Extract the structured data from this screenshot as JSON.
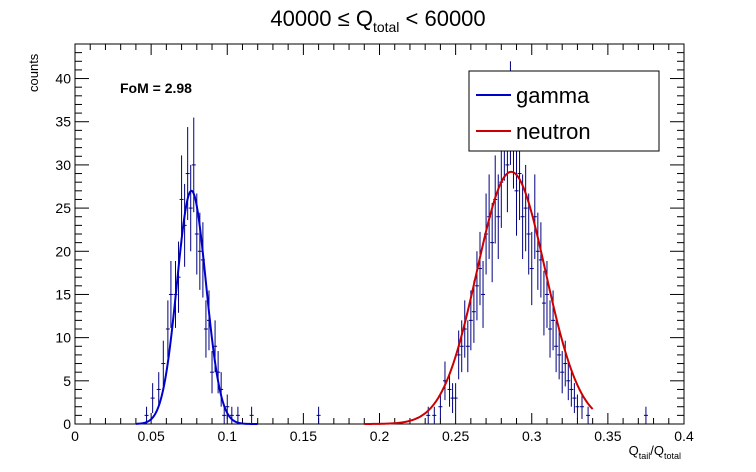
{
  "chart_data": {
    "type": "line",
    "title": {
      "prefix": "40000 ≤ Q",
      "sub": "total",
      "suffix": " < 60000"
    },
    "xlabel": {
      "main1": "Q",
      "sub1": "tail",
      "sep": "/Q",
      "sub2": "total"
    },
    "ylabel": "counts",
    "xlim": [
      0,
      0.4
    ],
    "ylim": [
      0,
      44
    ],
    "xticks": [
      "0",
      "0.05",
      "0.1",
      "0.15",
      "0.2",
      "0.25",
      "0.3",
      "0.35",
      "0.4"
    ],
    "yticks": [
      "0",
      "5",
      "10",
      "15",
      "20",
      "25",
      "30",
      "35",
      "40"
    ],
    "annotation": "FoM = 2.98",
    "legend_position": "top-right",
    "series": [
      {
        "name": "gamma",
        "color": "#0000cc",
        "fit": {
          "amplitude": 27,
          "mean": 0.0765,
          "sigma": 0.0095,
          "range": [
            0.04,
            0.12
          ]
        },
        "points": [
          [
            0.047,
            1
          ],
          [
            0.051,
            3
          ],
          [
            0.055,
            4
          ],
          [
            0.058,
            7
          ],
          [
            0.061,
            11
          ],
          [
            0.063,
            15
          ],
          [
            0.066,
            15
          ],
          [
            0.068,
            17
          ],
          [
            0.07,
            26
          ],
          [
            0.072,
            23
          ],
          [
            0.074,
            29
          ],
          [
            0.076,
            25
          ],
          [
            0.078,
            30
          ],
          [
            0.08,
            22
          ],
          [
            0.082,
            20
          ],
          [
            0.084,
            19
          ],
          [
            0.086,
            11
          ],
          [
            0.088,
            12
          ],
          [
            0.09,
            6
          ],
          [
            0.092,
            9
          ],
          [
            0.094,
            6
          ],
          [
            0.096,
            4
          ],
          [
            0.098,
            1
          ],
          [
            0.1,
            2
          ],
          [
            0.103,
            1
          ],
          [
            0.107,
            1
          ],
          [
            0.116,
            1
          ],
          [
            0.16,
            1
          ],
          [
            0.375,
            1
          ]
        ]
      },
      {
        "name": "neutron",
        "color": "#cc0000",
        "fit": {
          "amplitude": 29.2,
          "mean": 0.2865,
          "sigma": 0.0225,
          "range": [
            0.19,
            0.34
          ]
        },
        "points": [
          [
            0.232,
            1
          ],
          [
            0.236,
            1
          ],
          [
            0.24,
            2
          ],
          [
            0.243,
            5
          ],
          [
            0.246,
            4
          ],
          [
            0.248,
            3
          ],
          [
            0.25,
            3
          ],
          [
            0.252,
            8
          ],
          [
            0.254,
            9
          ],
          [
            0.256,
            11
          ],
          [
            0.258,
            9
          ],
          [
            0.26,
            12
          ],
          [
            0.262,
            13
          ],
          [
            0.264,
            16
          ],
          [
            0.266,
            18
          ],
          [
            0.268,
            15
          ],
          [
            0.27,
            22
          ],
          [
            0.272,
            24
          ],
          [
            0.274,
            21
          ],
          [
            0.276,
            26
          ],
          [
            0.278,
            24
          ],
          [
            0.28,
            28
          ],
          [
            0.282,
            34
          ],
          [
            0.284,
            30
          ],
          [
            0.286,
            36
          ],
          [
            0.288,
            33
          ],
          [
            0.29,
            27
          ],
          [
            0.292,
            29
          ],
          [
            0.294,
            24
          ],
          [
            0.296,
            25
          ],
          [
            0.298,
            22
          ],
          [
            0.3,
            18
          ],
          [
            0.302,
            24
          ],
          [
            0.304,
            20
          ],
          [
            0.306,
            19
          ],
          [
            0.308,
            14
          ],
          [
            0.31,
            15
          ],
          [
            0.312,
            11
          ],
          [
            0.314,
            12
          ],
          [
            0.316,
            9
          ],
          [
            0.318,
            8
          ],
          [
            0.32,
            6
          ],
          [
            0.322,
            7
          ],
          [
            0.324,
            5
          ],
          [
            0.326,
            4
          ],
          [
            0.328,
            3
          ],
          [
            0.33,
            2
          ],
          [
            0.333,
            2
          ],
          [
            0.337,
            1
          ]
        ]
      }
    ]
  }
}
